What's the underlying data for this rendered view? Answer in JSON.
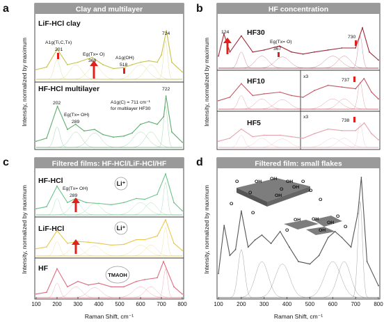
{
  "colors": {
    "header_fill": "#9a9a9a",
    "lif_green": "#c8c24a",
    "hf_green": "#5fae6f",
    "hf_red": "#9e2a3a",
    "hf10_red": "#c45863",
    "hf5_pink": "#e6a3ad",
    "panel_c_green": "#6cc38a",
    "panel_c_yellow": "#e8c84d",
    "panel_c_red": "#e06b7d",
    "panel_d_gray": "#555555",
    "arrow_red": "#e0201b",
    "component_gray": "#aaaaaa"
  },
  "panels": {
    "a": {
      "letter": "a",
      "header": "Clay and multilayer",
      "ylabel": "Intensity, normalized by maximum",
      "sub1": "LiF-HCl clay",
      "sub2": "HF-HCl multilayer",
      "ann": {
        "a1g_top": "A1g(Ti,C,Tx)",
        "v201": "201",
        "eg_top": "Eg(Tx= O)",
        "v369": "369",
        "a1g_oh": "A1g(OH)",
        "v518": "518",
        "v724": "724",
        "v202": "202",
        "eg_oh": "Eg(Tx= OH)",
        "v289": "289",
        "a1g_c": "A1g(C) = 711 cm⁻¹",
        "a1g_c2": "for multilayer HF30",
        "v722": "722"
      }
    },
    "b": {
      "letter": "b",
      "header": "HF concentration",
      "ylabel": "Intensity, normalized by maximum",
      "sub1": "HF30",
      "sub2": "HF10",
      "sub3": "HF5",
      "ann": {
        "v124": "124",
        "eg_o": "Eg(Tx= O)",
        "v367": "367",
        "v730": "730",
        "x3a": "x3",
        "v737": "737",
        "x3b": "x3",
        "v738": "738"
      }
    },
    "c": {
      "letter": "c",
      "header": "Filtered films: HF-HCl/LiF-HCl/HF",
      "ylabel": "Intensity, normalized by maximum",
      "xlabel": "Raman Shift, cm⁻¹",
      "sub1": "HF-HCl",
      "sub2": "LiF-HCl",
      "sub3": "HF",
      "ann": {
        "eg_oh": "Eg(Tx= OH)",
        "v289": "289",
        "li1": "Li⁺",
        "li2": "Li⁺",
        "tmaoh": "TMAOH"
      }
    },
    "d": {
      "letter": "d",
      "header": "Filtered film: small flakes",
      "ylabel": "Intensity, normalized by maximum",
      "xlabel": "Raman Shift, cm⁻¹",
      "flake_labels": {
        "oh": "OH",
        "o": "O"
      }
    }
  },
  "x_ticks": [
    "100",
    "200",
    "300",
    "400",
    "500",
    "600",
    "700",
    "800"
  ],
  "chart_data": [
    {
      "type": "line",
      "panel": "a",
      "title": "Clay and multilayer",
      "xlabel": "",
      "ylabel": "Intensity, normalized by maximum",
      "xlim": [
        100,
        800
      ],
      "series": [
        {
          "name": "LiF-HCl clay",
          "x": [
            100,
            150,
            201,
            250,
            300,
            369,
            420,
            470,
            518,
            560,
            600,
            640,
            680,
            700,
            724,
            750,
            800
          ],
          "y": [
            0.2,
            0.25,
            0.62,
            0.3,
            0.35,
            0.45,
            0.3,
            0.22,
            0.24,
            0.3,
            0.35,
            0.38,
            0.35,
            0.5,
            1.0,
            0.35,
            0.15
          ]
        },
        {
          "name": "HF-HCl multilayer",
          "x": [
            100,
            150,
            202,
            250,
            289,
            330,
            380,
            420,
            470,
            520,
            560,
            600,
            640,
            680,
            711,
            722,
            750,
            800
          ],
          "y": [
            0.12,
            0.18,
            0.8,
            0.35,
            0.45,
            0.32,
            0.35,
            0.25,
            0.2,
            0.22,
            0.28,
            0.45,
            0.5,
            0.45,
            0.6,
            1.0,
            0.3,
            0.1
          ]
        }
      ]
    },
    {
      "type": "line",
      "panel": "b",
      "title": "HF concentration",
      "xlabel": "",
      "ylabel": "Intensity, normalized by maximum",
      "xlim": [
        100,
        800
      ],
      "series": [
        {
          "name": "HF30",
          "x": [
            100,
            124,
            150,
            200,
            250,
            300,
            367,
            420,
            470,
            520,
            580,
            640,
            700,
            730,
            760,
            800
          ],
          "y": [
            0.3,
            0.85,
            0.4,
            0.8,
            0.4,
            0.45,
            0.55,
            0.4,
            0.35,
            0.4,
            0.45,
            0.5,
            0.5,
            1.0,
            0.4,
            0.2
          ]
        },
        {
          "name": "HF10",
          "x": [
            100,
            150,
            200,
            250,
            300,
            370,
            420,
            470,
            520,
            580,
            640,
            700,
            737,
            770,
            800
          ],
          "y": [
            0.25,
            0.35,
            0.75,
            0.4,
            0.45,
            0.5,
            0.4,
            0.35,
            0.55,
            0.7,
            0.65,
            0.6,
            0.9,
            0.5,
            0.3
          ]
        },
        {
          "name": "HF5",
          "x": [
            100,
            150,
            200,
            250,
            300,
            370,
            420,
            470,
            520,
            580,
            640,
            700,
            738,
            770,
            800
          ],
          "y": [
            0.2,
            0.3,
            0.6,
            0.35,
            0.4,
            0.4,
            0.35,
            0.3,
            0.45,
            0.6,
            0.55,
            0.55,
            0.8,
            0.45,
            0.25
          ]
        }
      ]
    },
    {
      "type": "line",
      "panel": "c",
      "title": "Filtered films: HF-HCl/LiF-HCl/HF",
      "xlabel": "Raman Shift, cm⁻¹",
      "ylabel": "Intensity, normalized by maximum",
      "xlim": [
        100,
        800
      ],
      "series": [
        {
          "name": "HF-HCl",
          "x": [
            100,
            150,
            200,
            250,
            289,
            340,
            400,
            460,
            520,
            580,
            620,
            680,
            720,
            760,
            800
          ],
          "y": [
            0.15,
            0.2,
            0.7,
            0.3,
            0.4,
            0.3,
            0.28,
            0.25,
            0.3,
            0.4,
            0.38,
            0.5,
            1.0,
            0.3,
            0.1
          ]
        },
        {
          "name": "LiF-HCl",
          "x": [
            100,
            150,
            200,
            250,
            300,
            350,
            400,
            460,
            520,
            580,
            620,
            680,
            720,
            760,
            800
          ],
          "y": [
            0.2,
            0.25,
            0.7,
            0.35,
            0.4,
            0.38,
            0.35,
            0.3,
            0.32,
            0.45,
            0.45,
            0.55,
            1.0,
            0.35,
            0.15
          ]
        },
        {
          "name": "HF",
          "x": [
            100,
            150,
            200,
            250,
            300,
            350,
            400,
            460,
            520,
            580,
            620,
            680,
            710,
            760,
            800
          ],
          "y": [
            0.1,
            0.15,
            0.8,
            0.3,
            0.45,
            0.35,
            0.4,
            0.3,
            0.3,
            0.45,
            0.5,
            0.55,
            1.0,
            0.3,
            0.1
          ]
        }
      ]
    },
    {
      "type": "line",
      "panel": "d",
      "title": "Filtered film: small flakes",
      "xlabel": "Raman Shift, cm⁻¹",
      "ylabel": "Intensity, normalized by maximum",
      "xlim": [
        100,
        800
      ],
      "series": [
        {
          "name": "small flakes",
          "x": [
            100,
            125,
            150,
            175,
            200,
            230,
            260,
            290,
            330,
            370,
            410,
            450,
            500,
            540,
            580,
            610,
            640,
            680,
            710,
            725,
            750,
            800
          ],
          "y": [
            0.2,
            0.6,
            0.35,
            0.4,
            0.72,
            0.42,
            0.48,
            0.52,
            0.45,
            0.55,
            0.42,
            0.3,
            0.28,
            0.35,
            0.5,
            0.55,
            0.5,
            0.42,
            0.7,
            1.0,
            0.3,
            0.1
          ]
        }
      ]
    }
  ]
}
